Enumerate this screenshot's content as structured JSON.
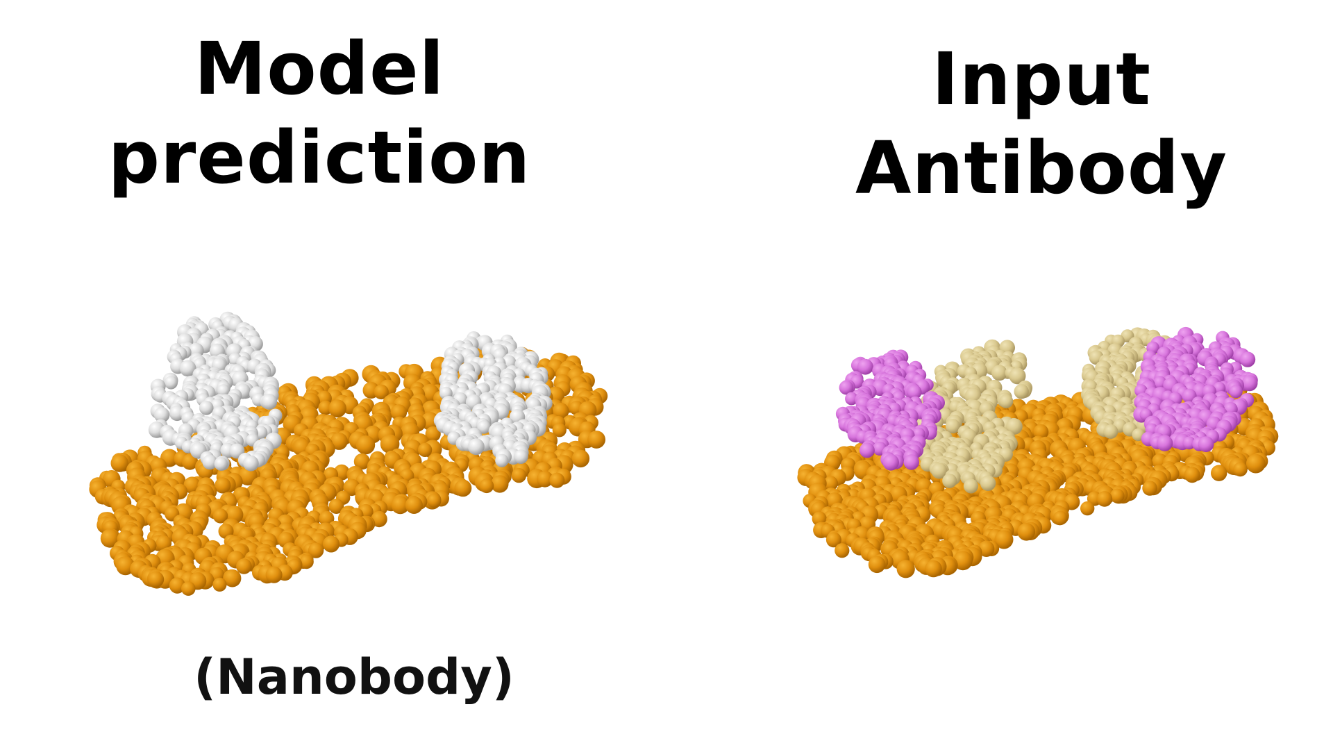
{
  "left_panel": {
    "title_line1": "Model",
    "title_line2": "prediction",
    "caption": "(Nanobody)"
  },
  "right_panel": {
    "title_line1": "Input",
    "title_line2": "Antibody"
  },
  "colors": {
    "antigen": "#e08f0e",
    "antigen_highlight": "#f6b332",
    "antigen_shadow": "#a86400",
    "nanobody": "#dcdcdc",
    "nanobody_highlight": "#ffffff",
    "nanobody_shadow": "#9a9a9a",
    "heavy_chain": "#d9c88e",
    "heavy_chain_highlight": "#efe3b5",
    "heavy_chain_shadow": "#a89560",
    "light_chain": "#d774dc",
    "light_chain_highlight": "#eea3f0",
    "light_chain_shadow": "#9e3ea6"
  }
}
